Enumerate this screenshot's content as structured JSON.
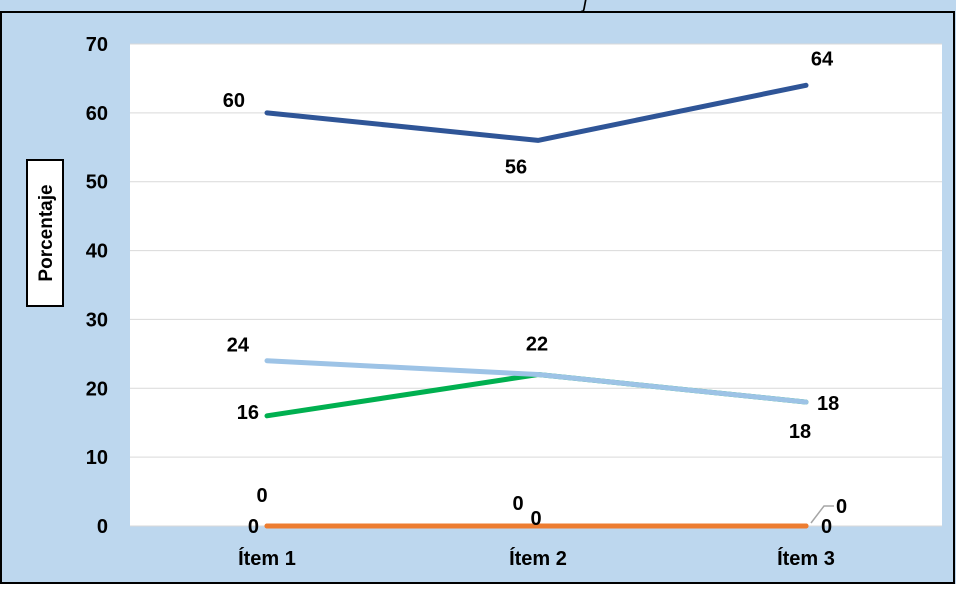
{
  "chart_data": {
    "type": "line",
    "title": "",
    "xlabel": "",
    "ylabel": "Porcentaje",
    "categories": [
      "Ítem 1",
      "Ítem 2",
      "Ítem 3"
    ],
    "ylim": [
      0,
      70
    ],
    "yticks": [
      0,
      10,
      20,
      30,
      40,
      50,
      60,
      70
    ],
    "grid": true,
    "legend": "none",
    "series": [
      {
        "color": "#2F5597",
        "values": [
          60,
          56,
          64
        ]
      },
      {
        "color": "#9DC3E6",
        "values": [
          24,
          22,
          18
        ]
      },
      {
        "color": "#00B050",
        "values": [
          16,
          22,
          18
        ]
      },
      {
        "color": "#ED7D31",
        "values": [
          0,
          0,
          0
        ]
      },
      {
        "color": "#ED7D31",
        "values": [
          0,
          0,
          0
        ]
      }
    ],
    "background_color": "#BDD7EE",
    "plot_area_color": "#FFFFFF",
    "title_fragment": "j"
  }
}
